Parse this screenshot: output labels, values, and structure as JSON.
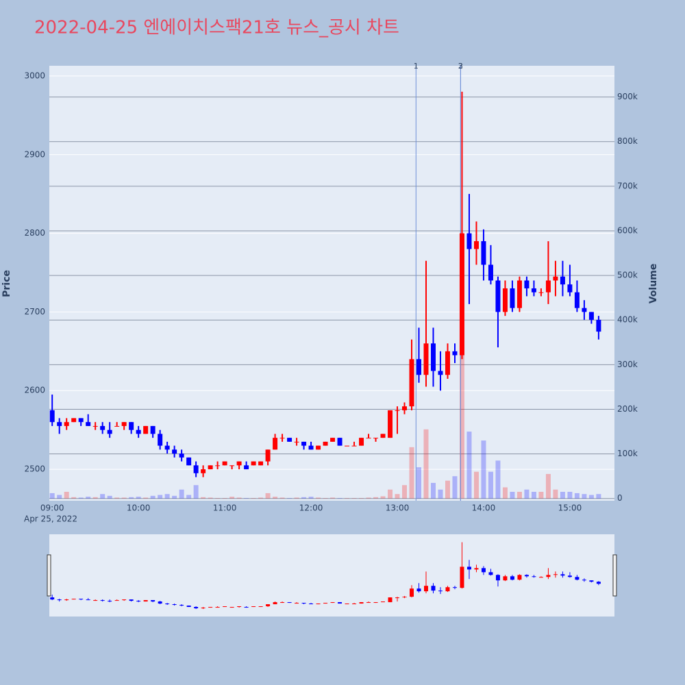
{
  "chart_data": {
    "type": "candlestick",
    "title": "2022-04-25 엔에이치스팩21호 뉴스_공시 차트",
    "y_title": "Price",
    "y2_title": "Volume",
    "x_date_label": "Apr 25, 2022",
    "increasing_color": "#ff0000",
    "decreasing_color": "#0000ff",
    "xlim": [
      "08:58",
      "15:31"
    ],
    "xticks": [
      "09:00",
      "10:00",
      "11:00",
      "12:00",
      "13:00",
      "14:00",
      "15:00"
    ],
    "ylim": [
      2460,
      3013
    ],
    "yticks": [
      2500,
      2600,
      2700,
      2800,
      2900,
      3000
    ],
    "y2lim": [
      -5000,
      970000
    ],
    "y2ticks": [
      0,
      {
        "value": 100000,
        "label": "100k"
      },
      {
        "value": 200000,
        "label": "200k"
      },
      {
        "value": 300000,
        "label": "300k"
      },
      {
        "value": 400000,
        "label": "400k"
      },
      {
        "value": 500000,
        "label": "500k"
      },
      {
        "value": 600000,
        "label": "600k"
      },
      {
        "value": 700000,
        "label": "700k"
      },
      {
        "value": 800000,
        "label": "800k"
      },
      {
        "value": 900000,
        "label": "900k"
      }
    ],
    "annotations": [
      {
        "x": "13:13",
        "text": "1"
      },
      {
        "x": "13:44",
        "text": "2"
      },
      {
        "x": "13:44",
        "text": "3"
      }
    ],
    "x": [
      "09:00",
      "09:05",
      "09:10",
      "09:15",
      "09:20",
      "09:25",
      "09:30",
      "09:35",
      "09:40",
      "09:45",
      "09:50",
      "09:55",
      "10:00",
      "10:05",
      "10:10",
      "10:15",
      "10:20",
      "10:25",
      "10:30",
      "10:35",
      "10:40",
      "10:45",
      "10:50",
      "10:55",
      "11:00",
      "11:05",
      "11:10",
      "11:15",
      "11:20",
      "11:25",
      "11:30",
      "11:35",
      "11:40",
      "11:45",
      "11:50",
      "11:55",
      "12:00",
      "12:05",
      "12:10",
      "12:15",
      "12:20",
      "12:25",
      "12:30",
      "12:35",
      "12:40",
      "12:45",
      "12:50",
      "12:55",
      "13:00",
      "13:05",
      "13:10",
      "13:15",
      "13:20",
      "13:25",
      "13:30",
      "13:35",
      "13:40",
      "13:45",
      "13:50",
      "13:55",
      "14:00",
      "14:05",
      "14:10",
      "14:15",
      "14:20",
      "14:25",
      "14:30",
      "14:35",
      "14:40",
      "14:45",
      "14:50",
      "14:55",
      "15:00",
      "15:05",
      "15:10",
      "15:15",
      "15:20"
    ],
    "open": [
      2575,
      2560,
      2555,
      2560,
      2565,
      2560,
      2555,
      2555,
      2550,
      2555,
      2555,
      2560,
      2550,
      2545,
      2555,
      2545,
      2530,
      2525,
      2520,
      2515,
      2505,
      2495,
      2500,
      2505,
      2505,
      2505,
      2505,
      2505,
      2505,
      2505,
      2510,
      2525,
      2540,
      2540,
      2535,
      2535,
      2530,
      2525,
      2530,
      2535,
      2540,
      2530,
      2530,
      2530,
      2540,
      2540,
      2540,
      2540,
      2575,
      2575,
      2580,
      2640,
      2620,
      2660,
      2625,
      2620,
      2650,
      2645,
      2800,
      2780,
      2790,
      2760,
      2740,
      2700,
      2730,
      2705,
      2740,
      2730,
      2725,
      2725,
      2740,
      2745,
      2735,
      2725,
      2705,
      2700,
      2690
    ],
    "high": [
      2595,
      2565,
      2565,
      2565,
      2565,
      2570,
      2560,
      2560,
      2560,
      2560,
      2560,
      2560,
      2555,
      2555,
      2555,
      2550,
      2535,
      2530,
      2525,
      2515,
      2510,
      2505,
      2505,
      2510,
      2510,
      2505,
      2510,
      2510,
      2510,
      2510,
      2525,
      2545,
      2545,
      2540,
      2540,
      2535,
      2535,
      2530,
      2535,
      2540,
      2540,
      2530,
      2535,
      2540,
      2545,
      2540,
      2545,
      2575,
      2580,
      2585,
      2665,
      2680,
      2765,
      2680,
      2650,
      2660,
      2660,
      2980,
      2850,
      2815,
      2805,
      2785,
      2745,
      2740,
      2740,
      2745,
      2745,
      2740,
      2730,
      2790,
      2765,
      2765,
      2760,
      2740,
      2715,
      2700,
      2695
    ],
    "low": [
      2555,
      2545,
      2550,
      2560,
      2555,
      2555,
      2550,
      2545,
      2540,
      2555,
      2550,
      2545,
      2540,
      2545,
      2540,
      2525,
      2520,
      2515,
      2510,
      2505,
      2490,
      2490,
      2500,
      2500,
      2505,
      2500,
      2500,
      2500,
      2505,
      2505,
      2505,
      2525,
      2535,
      2535,
      2530,
      2525,
      2525,
      2525,
      2530,
      2535,
      2530,
      2530,
      2530,
      2530,
      2540,
      2535,
      2540,
      2540,
      2545,
      2570,
      2575,
      2610,
      2605,
      2605,
      2600,
      2615,
      2635,
      2640,
      2710,
      2760,
      2740,
      2735,
      2655,
      2695,
      2700,
      2700,
      2720,
      2720,
      2720,
      2710,
      2720,
      2720,
      2720,
      2700,
      2690,
      2685,
      2665
    ],
    "close": [
      2560,
      2555,
      2560,
      2565,
      2560,
      2555,
      2555,
      2550,
      2545,
      2555,
      2560,
      2550,
      2545,
      2555,
      2545,
      2530,
      2525,
      2520,
      2515,
      2505,
      2495,
      2500,
      2505,
      2505,
      2510,
      2505,
      2510,
      2500,
      2510,
      2510,
      2525,
      2540,
      2540,
      2535,
      2535,
      2530,
      2525,
      2530,
      2535,
      2540,
      2530,
      2530,
      2530,
      2540,
      2540,
      2540,
      2545,
      2575,
      2575,
      2580,
      2640,
      2620,
      2660,
      2625,
      2620,
      2650,
      2645,
      2800,
      2780,
      2790,
      2760,
      2740,
      2700,
      2730,
      2705,
      2740,
      2730,
      2725,
      2725,
      2740,
      2745,
      2735,
      2725,
      2705,
      2700,
      2690,
      2675
    ],
    "volume": [
      12000,
      8000,
      15000,
      3000,
      2000,
      4000,
      3000,
      10000,
      6000,
      2000,
      2000,
      3000,
      4000,
      2000,
      6000,
      8000,
      10000,
      6000,
      20000,
      8000,
      30000,
      3000,
      2000,
      1000,
      1000,
      4000,
      2000,
      1000,
      1000,
      2000,
      12000,
      4000,
      2000,
      1000,
      2000,
      3000,
      4000,
      2000,
      1000,
      2000,
      1000,
      1000,
      1000,
      1000,
      2000,
      3000,
      5000,
      20000,
      10000,
      30000,
      115000,
      70000,
      155000,
      35000,
      20000,
      40000,
      50000,
      345000,
      150000,
      60000,
      130000,
      60000,
      85000,
      25000,
      15000,
      15000,
      20000,
      15000,
      15000,
      55000,
      20000,
      15000,
      15000,
      12000,
      10000,
      8000,
      10000
    ]
  }
}
